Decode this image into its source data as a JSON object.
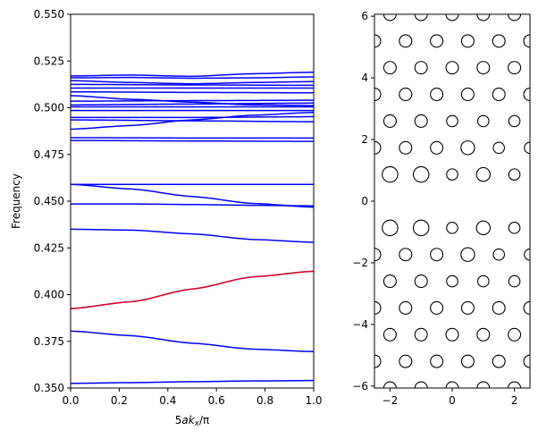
{
  "chart_data": [
    {
      "type": "line",
      "title": "",
      "xlabel": "5ak_x/π",
      "ylabel": "Frequency",
      "xlim": [
        0.0,
        1.0
      ],
      "ylim": [
        0.35,
        0.55
      ],
      "xticks": [
        "0.0",
        "0.2",
        "0.4",
        "0.6",
        "0.8",
        "1.0"
      ],
      "yticks": [
        "0.350",
        "0.375",
        "0.400",
        "0.425",
        "0.450",
        "0.475",
        "0.500",
        "0.525",
        "0.550"
      ],
      "grid": false,
      "colors": {
        "bands": "#0000ff",
        "highlight": "#ff0000"
      },
      "series": [
        {
          "kind": "band",
          "values": [
            [
              0.0,
              0.3525
            ],
            [
              0.25,
              0.3529
            ],
            [
              0.5,
              0.3534
            ],
            [
              0.75,
              0.3538
            ],
            [
              1.0,
              0.354
            ]
          ]
        },
        {
          "kind": "band",
          "values": [
            [
              0.0,
              0.3805
            ],
            [
              0.25,
              0.378
            ],
            [
              0.5,
              0.374
            ],
            [
              0.75,
              0.3708
            ],
            [
              1.0,
              0.3695
            ]
          ]
        },
        {
          "kind": "band",
          "values": [
            [
              0.0,
              0.3925
            ],
            [
              0.25,
              0.3962
            ],
            [
              0.5,
              0.403
            ],
            [
              0.75,
              0.4095
            ],
            [
              1.0,
              0.4125
            ]
          ]
        },
        {
          "kind": "highlight",
          "values": [
            [
              0.0,
              0.3925
            ],
            [
              0.25,
              0.3962
            ],
            [
              0.5,
              0.403
            ],
            [
              0.75,
              0.4095
            ],
            [
              1.0,
              0.4125
            ]
          ]
        },
        {
          "kind": "band",
          "values": [
            [
              0.0,
              0.435
            ],
            [
              0.25,
              0.4345
            ],
            [
              0.5,
              0.4325
            ],
            [
              0.75,
              0.4295
            ],
            [
              1.0,
              0.428
            ]
          ]
        },
        {
          "kind": "band",
          "values": [
            [
              0.0,
              0.4485
            ],
            [
              0.25,
              0.4485
            ],
            [
              0.5,
              0.4482
            ],
            [
              0.75,
              0.4478
            ],
            [
              1.0,
              0.4475
            ]
          ]
        },
        {
          "kind": "band",
          "values": [
            [
              0.0,
              0.459
            ],
            [
              0.25,
              0.4565
            ],
            [
              0.5,
              0.4525
            ],
            [
              0.75,
              0.4488
            ],
            [
              1.0,
              0.4468
            ]
          ]
        },
        {
          "kind": "band",
          "values": [
            [
              0.0,
              0.459
            ],
            [
              0.5,
              0.459
            ],
            [
              1.0,
              0.459
            ]
          ]
        },
        {
          "kind": "band",
          "values": [
            [
              0.0,
              0.4825
            ],
            [
              0.5,
              0.4822
            ],
            [
              1.0,
              0.482
            ]
          ]
        },
        {
          "kind": "band",
          "values": [
            [
              0.0,
              0.484
            ],
            [
              0.5,
              0.4838
            ],
            [
              1.0,
              0.4838
            ]
          ]
        },
        {
          "kind": "band",
          "values": [
            [
              0.0,
              0.4885
            ],
            [
              0.25,
              0.4905
            ],
            [
              0.5,
              0.4935
            ],
            [
              0.75,
              0.496
            ],
            [
              1.0,
              0.4975
            ]
          ]
        },
        {
          "kind": "band",
          "values": [
            [
              0.0,
              0.4935
            ],
            [
              0.5,
              0.493
            ],
            [
              1.0,
              0.4925
            ]
          ]
        },
        {
          "kind": "band",
          "values": [
            [
              0.0,
              0.4948
            ],
            [
              0.5,
              0.4948
            ],
            [
              1.0,
              0.4952
            ]
          ]
        },
        {
          "kind": "band",
          "values": [
            [
              0.0,
              0.4985
            ],
            [
              0.5,
              0.4985
            ],
            [
              1.0,
              0.4985
            ]
          ]
        },
        {
          "kind": "band",
          "values": [
            [
              0.0,
              0.5005
            ],
            [
              0.5,
              0.5005
            ],
            [
              1.0,
              0.5005
            ]
          ]
        },
        {
          "kind": "band",
          "values": [
            [
              0.0,
              0.5015
            ],
            [
              0.5,
              0.502
            ],
            [
              1.0,
              0.5025
            ]
          ]
        },
        {
          "kind": "band",
          "values": [
            [
              0.0,
              0.5035
            ],
            [
              0.5,
              0.5038
            ],
            [
              1.0,
              0.504
            ]
          ]
        },
        {
          "kind": "band",
          "values": [
            [
              0.0,
              0.5065
            ],
            [
              0.25,
              0.5045
            ],
            [
              0.5,
              0.503
            ],
            [
              0.75,
              0.5015
            ],
            [
              1.0,
              0.5012
            ]
          ]
        },
        {
          "kind": "band",
          "values": [
            [
              0.0,
              0.5085
            ],
            [
              0.5,
              0.5082
            ],
            [
              1.0,
              0.508
            ]
          ]
        },
        {
          "kind": "band",
          "values": [
            [
              0.0,
              0.5105
            ],
            [
              0.5,
              0.5105
            ],
            [
              1.0,
              0.5105
            ]
          ]
        },
        {
          "kind": "band",
          "values": [
            [
              0.0,
              0.5125
            ],
            [
              0.5,
              0.5122
            ],
            [
              1.0,
              0.512
            ]
          ]
        },
        {
          "kind": "band",
          "values": [
            [
              0.0,
              0.5145
            ],
            [
              0.25,
              0.5135
            ],
            [
              0.5,
              0.5128
            ],
            [
              0.75,
              0.5135
            ],
            [
              1.0,
              0.514
            ]
          ]
        },
        {
          "kind": "band",
          "values": [
            [
              0.0,
              0.516
            ],
            [
              0.25,
              0.5162
            ],
            [
              0.5,
              0.5158
            ],
            [
              0.75,
              0.516
            ],
            [
              1.0,
              0.5165
            ]
          ]
        },
        {
          "kind": "band",
          "values": [
            [
              0.0,
              0.517
            ],
            [
              0.25,
              0.5175
            ],
            [
              0.5,
              0.5168
            ],
            [
              0.75,
              0.5182
            ],
            [
              1.0,
              0.519
            ]
          ]
        }
      ]
    },
    {
      "type": "scatter",
      "title": "",
      "xlabel": "",
      "ylabel": "",
      "xlim": [
        -2.5,
        2.5
      ],
      "ylim": [
        -6.062,
        6.062
      ],
      "xticks": [
        "−2",
        "0",
        "2"
      ],
      "yticks": [
        "−6",
        "−4",
        "−2",
        "0",
        "2",
        "4",
        "6"
      ],
      "grid": false,
      "marker": "open-circle",
      "points": [
        {
          "x": -2.0,
          "y": 6.062,
          "r": 0.2
        },
        {
          "x": -1.0,
          "y": 6.062,
          "r": 0.2
        },
        {
          "x": 0.0,
          "y": 6.062,
          "r": 0.2
        },
        {
          "x": 1.0,
          "y": 6.062,
          "r": 0.2
        },
        {
          "x": 2.0,
          "y": 6.062,
          "r": 0.2
        },
        {
          "x": -2.5,
          "y": 5.196,
          "r": 0.2
        },
        {
          "x": -1.5,
          "y": 5.196,
          "r": 0.2
        },
        {
          "x": -0.5,
          "y": 5.196,
          "r": 0.2
        },
        {
          "x": 0.5,
          "y": 5.196,
          "r": 0.2
        },
        {
          "x": 1.5,
          "y": 5.196,
          "r": 0.2
        },
        {
          "x": 2.5,
          "y": 5.196,
          "r": 0.2
        },
        {
          "x": -2.0,
          "y": 4.33,
          "r": 0.2
        },
        {
          "x": -1.0,
          "y": 4.33,
          "r": 0.2
        },
        {
          "x": 0.0,
          "y": 4.33,
          "r": 0.2
        },
        {
          "x": 1.0,
          "y": 4.33,
          "r": 0.2
        },
        {
          "x": 2.0,
          "y": 4.33,
          "r": 0.2
        },
        {
          "x": -2.5,
          "y": 3.464,
          "r": 0.2
        },
        {
          "x": -1.5,
          "y": 3.464,
          "r": 0.2
        },
        {
          "x": -0.5,
          "y": 3.464,
          "r": 0.2
        },
        {
          "x": 0.5,
          "y": 3.464,
          "r": 0.2
        },
        {
          "x": 1.5,
          "y": 3.464,
          "r": 0.2
        },
        {
          "x": 2.5,
          "y": 3.464,
          "r": 0.2
        },
        {
          "x": -2.0,
          "y": 2.598,
          "r": 0.2
        },
        {
          "x": -1.0,
          "y": 2.598,
          "r": 0.2
        },
        {
          "x": 0.0,
          "y": 2.598,
          "r": 0.18
        },
        {
          "x": 1.0,
          "y": 2.598,
          "r": 0.18
        },
        {
          "x": 2.0,
          "y": 2.598,
          "r": 0.18
        },
        {
          "x": -2.5,
          "y": 1.732,
          "r": 0.2
        },
        {
          "x": -1.5,
          "y": 1.732,
          "r": 0.2
        },
        {
          "x": -0.5,
          "y": 1.732,
          "r": 0.2
        },
        {
          "x": 0.5,
          "y": 1.732,
          "r": 0.22
        },
        {
          "x": 1.5,
          "y": 1.732,
          "r": 0.18
        },
        {
          "x": 2.5,
          "y": 1.732,
          "r": 0.18
        },
        {
          "x": -2.0,
          "y": 0.866,
          "r": 0.25
        },
        {
          "x": -1.0,
          "y": 0.866,
          "r": 0.25
        },
        {
          "x": 0.0,
          "y": 0.866,
          "r": 0.18
        },
        {
          "x": 1.0,
          "y": 0.866,
          "r": 0.22
        },
        {
          "x": 2.0,
          "y": 0.866,
          "r": 0.18
        },
        {
          "x": -2.0,
          "y": -0.866,
          "r": 0.25
        },
        {
          "x": -1.0,
          "y": -0.866,
          "r": 0.25
        },
        {
          "x": 0.0,
          "y": -0.866,
          "r": 0.18
        },
        {
          "x": 1.0,
          "y": -0.866,
          "r": 0.22
        },
        {
          "x": 2.0,
          "y": -0.866,
          "r": 0.18
        },
        {
          "x": -2.5,
          "y": -1.732,
          "r": 0.2
        },
        {
          "x": -1.5,
          "y": -1.732,
          "r": 0.2
        },
        {
          "x": -0.5,
          "y": -1.732,
          "r": 0.2
        },
        {
          "x": 0.5,
          "y": -1.732,
          "r": 0.22
        },
        {
          "x": 1.5,
          "y": -1.732,
          "r": 0.18
        },
        {
          "x": 2.5,
          "y": -1.732,
          "r": 0.18
        },
        {
          "x": -2.0,
          "y": -2.598,
          "r": 0.2
        },
        {
          "x": -1.0,
          "y": -2.598,
          "r": 0.2
        },
        {
          "x": 0.0,
          "y": -2.598,
          "r": 0.18
        },
        {
          "x": 1.0,
          "y": -2.598,
          "r": 0.18
        },
        {
          "x": 2.0,
          "y": -2.598,
          "r": 0.18
        },
        {
          "x": -2.5,
          "y": -3.464,
          "r": 0.2
        },
        {
          "x": -1.5,
          "y": -3.464,
          "r": 0.2
        },
        {
          "x": -0.5,
          "y": -3.464,
          "r": 0.2
        },
        {
          "x": 0.5,
          "y": -3.464,
          "r": 0.2
        },
        {
          "x": 1.5,
          "y": -3.464,
          "r": 0.2
        },
        {
          "x": 2.5,
          "y": -3.464,
          "r": 0.2
        },
        {
          "x": -2.0,
          "y": -4.33,
          "r": 0.2
        },
        {
          "x": -1.0,
          "y": -4.33,
          "r": 0.2
        },
        {
          "x": 0.0,
          "y": -4.33,
          "r": 0.2
        },
        {
          "x": 1.0,
          "y": -4.33,
          "r": 0.2
        },
        {
          "x": 2.0,
          "y": -4.33,
          "r": 0.2
        },
        {
          "x": -2.5,
          "y": -5.196,
          "r": 0.2
        },
        {
          "x": -1.5,
          "y": -5.196,
          "r": 0.2
        },
        {
          "x": -0.5,
          "y": -5.196,
          "r": 0.2
        },
        {
          "x": 0.5,
          "y": -5.196,
          "r": 0.2
        },
        {
          "x": 1.5,
          "y": -5.196,
          "r": 0.2
        },
        {
          "x": 2.5,
          "y": -5.196,
          "r": 0.2
        },
        {
          "x": -2.0,
          "y": -6.062,
          "r": 0.2
        },
        {
          "x": -1.0,
          "y": -6.062,
          "r": 0.2
        },
        {
          "x": 0.0,
          "y": -6.062,
          "r": 0.2
        },
        {
          "x": 1.0,
          "y": -6.062,
          "r": 0.2
        },
        {
          "x": 2.0,
          "y": -6.062,
          "r": 0.2
        }
      ]
    }
  ]
}
